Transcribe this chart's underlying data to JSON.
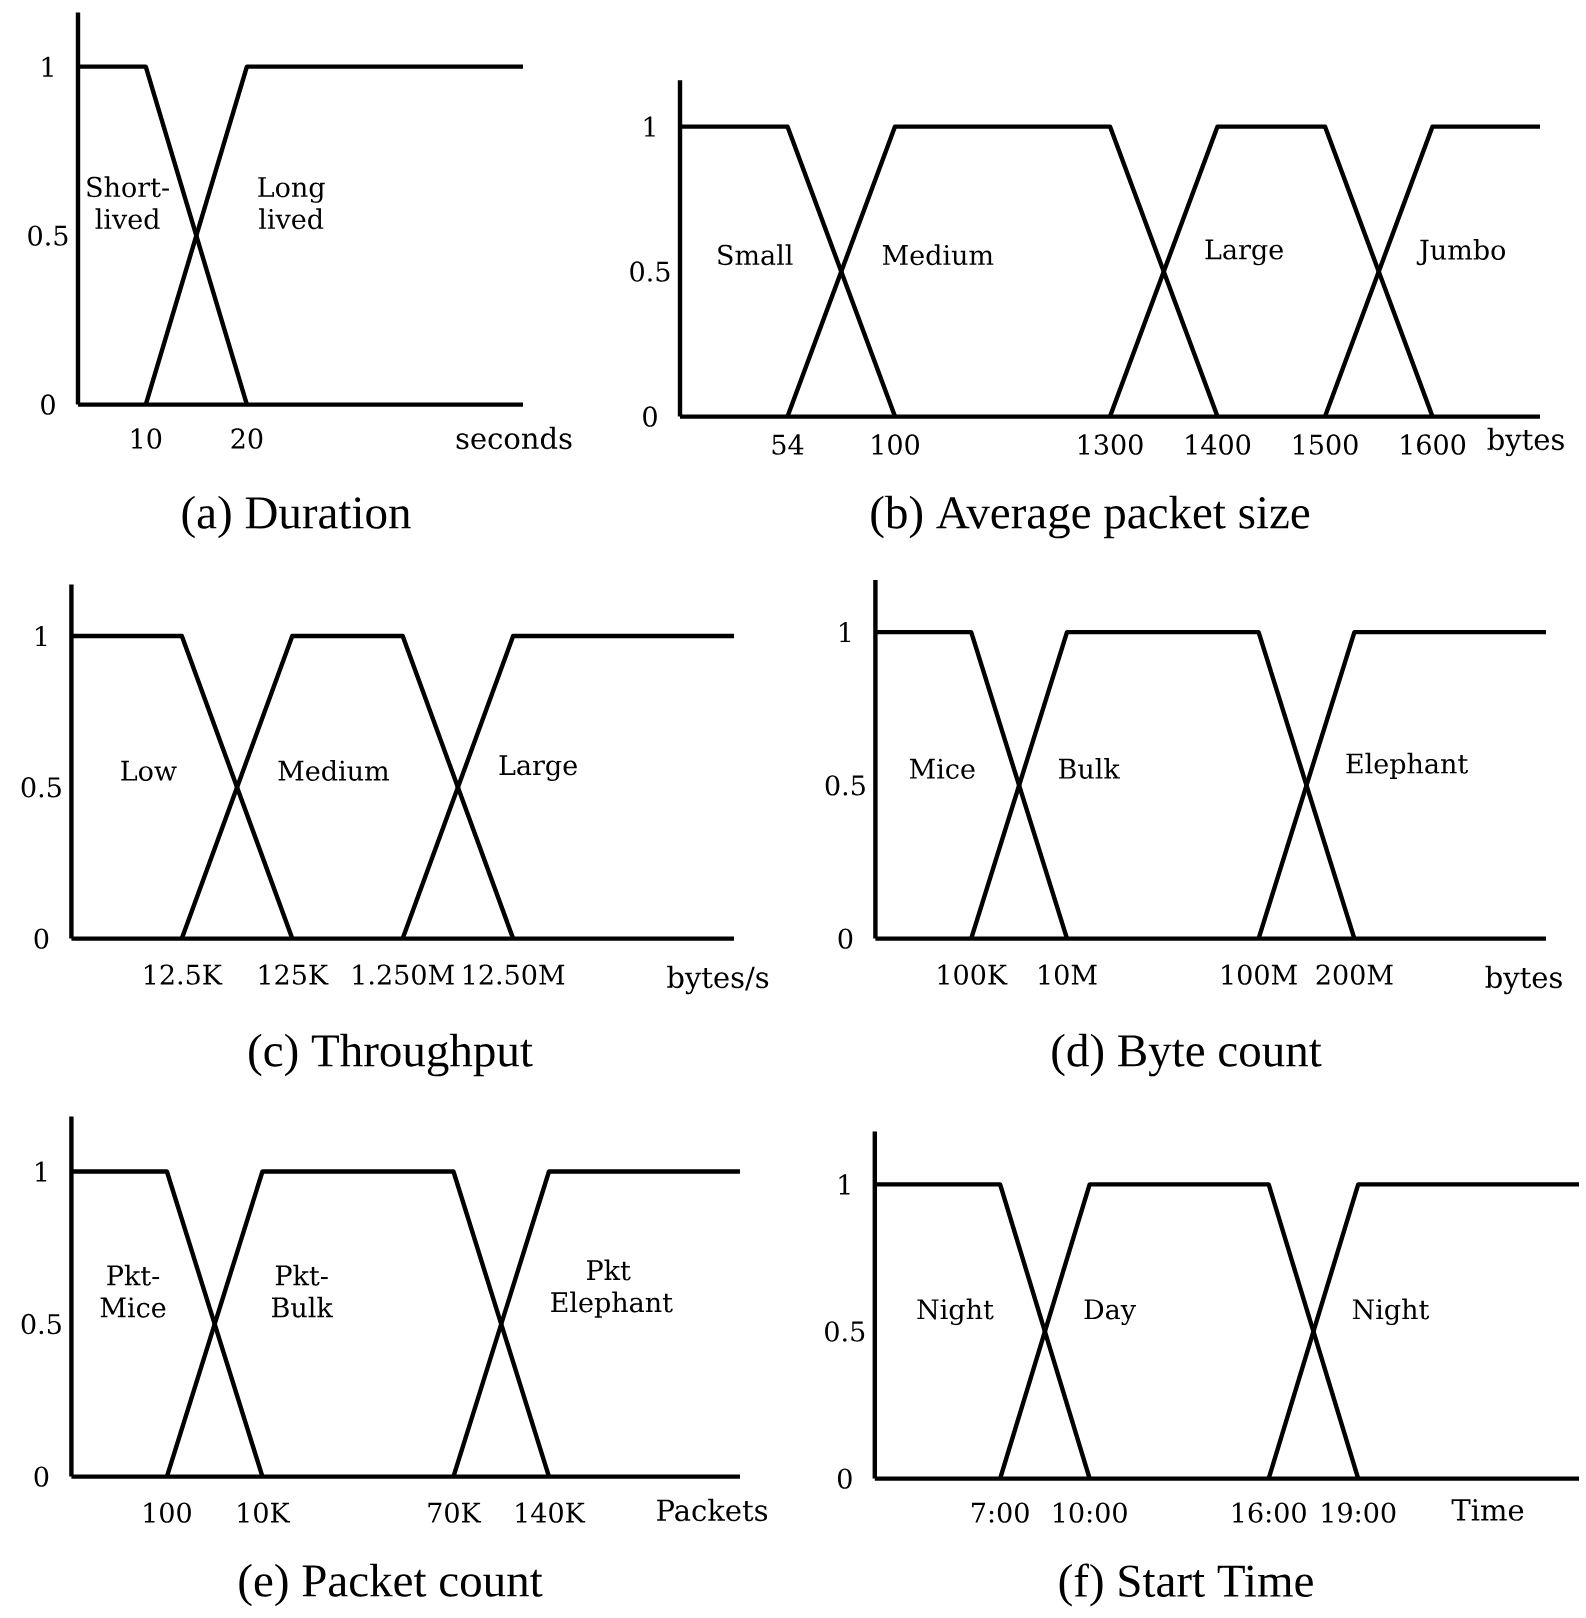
{
  "chart_data": [
    {
      "type": "line",
      "title": "(a) Duration",
      "xlabel": "seconds",
      "x": [
        3.3,
        10,
        20,
        47.3
      ],
      "xlim": [
        3.3,
        47.3
      ],
      "xticks": [
        10,
        20
      ],
      "ylim": [
        0,
        1.16
      ],
      "yticks": [
        0,
        0.5,
        1
      ],
      "series": [
        {
          "name": "Short-lived",
          "color": "#000000",
          "values": [
            1,
            1,
            0,
            null
          ]
        },
        {
          "name": "Long lived",
          "color": "#000000",
          "values": [
            null,
            0,
            1,
            1
          ]
        }
      ]
    },
    {
      "type": "line",
      "title": "(b) Average packet size",
      "xlabel": "bytes",
      "categories": [
        null,
        "54",
        "100",
        null,
        "1300",
        "1400",
        "1500",
        "1600",
        null
      ],
      "ylim": [
        0,
        1.16
      ],
      "yticks": [
        0,
        0.5,
        1
      ],
      "series": [
        {
          "name": "Small",
          "color": "#000000",
          "values": [
            1,
            1,
            0,
            null,
            null,
            null,
            null,
            null,
            null
          ]
        },
        {
          "name": "Medium",
          "color": "#000000",
          "values": [
            null,
            0,
            1,
            1,
            1,
            0,
            null,
            null,
            null
          ]
        },
        {
          "name": "Large",
          "color": "#000000",
          "values": [
            null,
            null,
            null,
            null,
            0,
            1,
            1,
            0,
            null
          ]
        },
        {
          "name": "Jumbo",
          "color": "#000000",
          "values": [
            null,
            null,
            null,
            null,
            null,
            null,
            0,
            1,
            1
          ]
        }
      ]
    },
    {
      "type": "line",
      "title": "(c) Throughput",
      "xlabel": "bytes/s",
      "categories": [
        null,
        "12.5K",
        "125K",
        "1.250M",
        "12.50M",
        null,
        null
      ],
      "ylim": [
        0,
        1.17
      ],
      "yticks": [
        0,
        0.5,
        1
      ],
      "series": [
        {
          "name": "Low",
          "color": "#000000",
          "values": [
            1,
            1,
            0,
            null,
            null,
            null,
            null
          ]
        },
        {
          "name": "Medium",
          "color": "#000000",
          "values": [
            null,
            0,
            1,
            1,
            0,
            null,
            null
          ]
        },
        {
          "name": "Large",
          "color": "#000000",
          "values": [
            null,
            null,
            null,
            0,
            1,
            1,
            1
          ]
        }
      ]
    },
    {
      "type": "line",
      "title": "(d) Byte count",
      "xlabel": "bytes",
      "categories": [
        null,
        "100K",
        "10M",
        null,
        "100M",
        "200M",
        null,
        null
      ],
      "ylim": [
        0,
        1.17
      ],
      "yticks": [
        0,
        0.5,
        1
      ],
      "series": [
        {
          "name": "Mice",
          "color": "#000000",
          "values": [
            1,
            1,
            0,
            null,
            null,
            null,
            null,
            null
          ]
        },
        {
          "name": "Bulk",
          "color": "#000000",
          "values": [
            null,
            0,
            1,
            1,
            1,
            0,
            null,
            null
          ]
        },
        {
          "name": "Elephant",
          "color": "#000000",
          "values": [
            null,
            null,
            null,
            null,
            0,
            1,
            1,
            1
          ]
        }
      ]
    },
    {
      "type": "line",
      "title": "(e) Packet count",
      "xlabel": "Packets",
      "categories": [
        null,
        "100",
        "10K",
        null,
        "70K",
        "140K",
        null,
        null
      ],
      "ylim": [
        0,
        1.18
      ],
      "yticks": [
        0,
        0.5,
        1
      ],
      "series": [
        {
          "name": "Pkt-Mice",
          "color": "#000000",
          "values": [
            1,
            1,
            0,
            null,
            null,
            null,
            null,
            null
          ]
        },
        {
          "name": "Pkt-Bulk",
          "color": "#000000",
          "values": [
            null,
            0,
            1,
            1,
            1,
            0,
            null,
            null
          ]
        },
        {
          "name": "Pkt Elephant",
          "color": "#000000",
          "values": [
            null,
            null,
            null,
            null,
            0,
            1,
            1,
            1
          ]
        }
      ]
    },
    {
      "type": "line",
      "title": "(f) Start Time",
      "xlabel": "Time",
      "x": [
        2.8,
        7,
        10,
        16,
        19,
        26.4
      ],
      "xlim": [
        2.8,
        26.4
      ],
      "xticks": [
        {
          "value": 7,
          "label": "7:00"
        },
        {
          "value": 10,
          "label": "10:00"
        },
        {
          "value": 16,
          "label": "16:00"
        },
        {
          "value": 19,
          "label": "19:00"
        }
      ],
      "ylim": [
        0,
        1.18
      ],
      "yticks": [
        0,
        0.5,
        1
      ],
      "series": [
        {
          "name": "Night",
          "color": "#000000",
          "values": [
            1,
            1,
            0,
            null,
            null,
            null
          ]
        },
        {
          "name": "Day",
          "color": "#000000",
          "values": [
            null,
            0,
            1,
            1,
            0,
            null
          ]
        },
        {
          "name": "Night",
          "color": "#000000",
          "values": [
            null,
            null,
            null,
            0,
            1,
            1
          ]
        }
      ]
    }
  ]
}
